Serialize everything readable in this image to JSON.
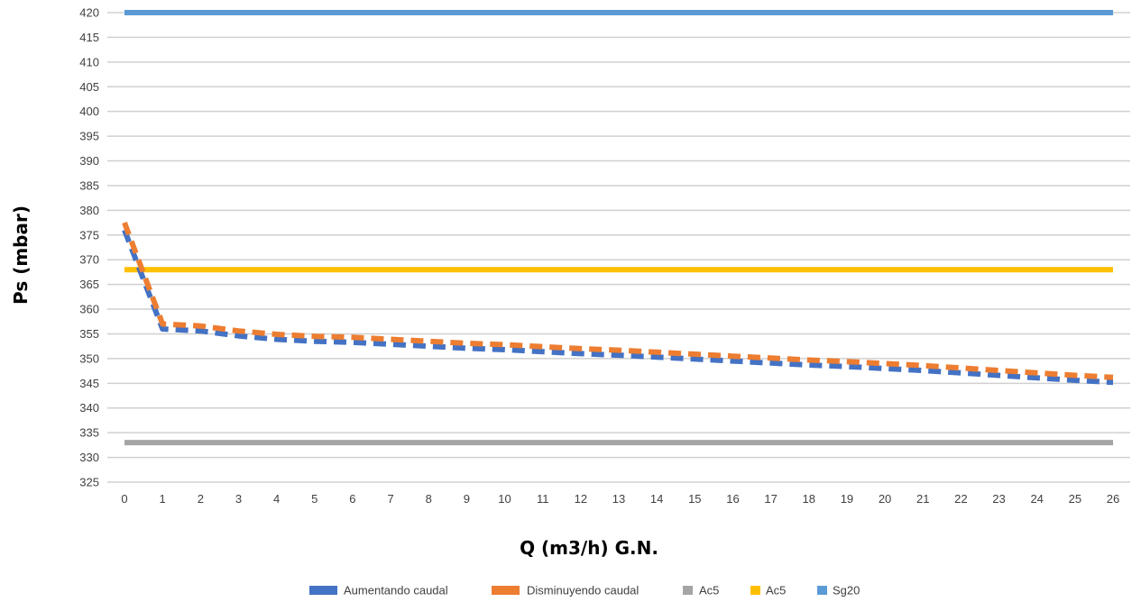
{
  "chart_data": {
    "type": "line",
    "title": "",
    "xlabel": "Q (m3/h) G.N.",
    "ylabel": "Ps (mbar)",
    "x": [
      0,
      1,
      2,
      3,
      4,
      5,
      6,
      7,
      8,
      9,
      10,
      11,
      12,
      13,
      14,
      15,
      16,
      17,
      18,
      19,
      20,
      21,
      22,
      23,
      24,
      25,
      26
    ],
    "xlim": [
      0,
      26
    ],
    "ylim": [
      325,
      420
    ],
    "yticks": [
      325,
      330,
      335,
      340,
      345,
      350,
      355,
      360,
      365,
      370,
      375,
      380,
      385,
      390,
      395,
      400,
      405,
      410,
      415,
      420
    ],
    "grid": "horizontal",
    "legend_position": "bottom",
    "series": [
      {
        "name": "Aumentando caudal",
        "color": "#4472C4",
        "style": "dashed",
        "values": [
          376,
          356,
          355.6,
          354.6,
          353.9,
          353.5,
          353.3,
          352.9,
          352.5,
          352.1,
          351.8,
          351.4,
          351,
          350.7,
          350.3,
          349.9,
          349.5,
          349.1,
          348.7,
          348.4,
          348,
          347.6,
          347.1,
          346.6,
          346.1,
          345.6,
          345.2
        ]
      },
      {
        "name": "Disminuyendo caudal",
        "color": "#ED7D31",
        "style": "dashed",
        "values": [
          377.5,
          357,
          356.6,
          355.6,
          354.9,
          354.5,
          354.3,
          353.9,
          353.5,
          353.1,
          352.8,
          352.4,
          352,
          351.7,
          351.3,
          350.9,
          350.5,
          350.1,
          349.7,
          349.4,
          349,
          348.6,
          348.1,
          347.6,
          347.1,
          346.6,
          346.2
        ]
      },
      {
        "name": "Ac5",
        "color": "#A5A5A5",
        "style": "solid",
        "values": [
          333,
          333,
          333,
          333,
          333,
          333,
          333,
          333,
          333,
          333,
          333,
          333,
          333,
          333,
          333,
          333,
          333,
          333,
          333,
          333,
          333,
          333,
          333,
          333,
          333,
          333,
          333
        ]
      },
      {
        "name": "Ac5",
        "color": "#FFC000",
        "style": "solid",
        "values": [
          368,
          368,
          368,
          368,
          368,
          368,
          368,
          368,
          368,
          368,
          368,
          368,
          368,
          368,
          368,
          368,
          368,
          368,
          368,
          368,
          368,
          368,
          368,
          368,
          368,
          368,
          368
        ]
      },
      {
        "name": "Sg20",
        "color": "#5B9BD5",
        "style": "solid",
        "values": [
          420,
          420,
          420,
          420,
          420,
          420,
          420,
          420,
          420,
          420,
          420,
          420,
          420,
          420,
          420,
          420,
          420,
          420,
          420,
          420,
          420,
          420,
          420,
          420,
          420,
          420,
          420
        ]
      }
    ]
  }
}
